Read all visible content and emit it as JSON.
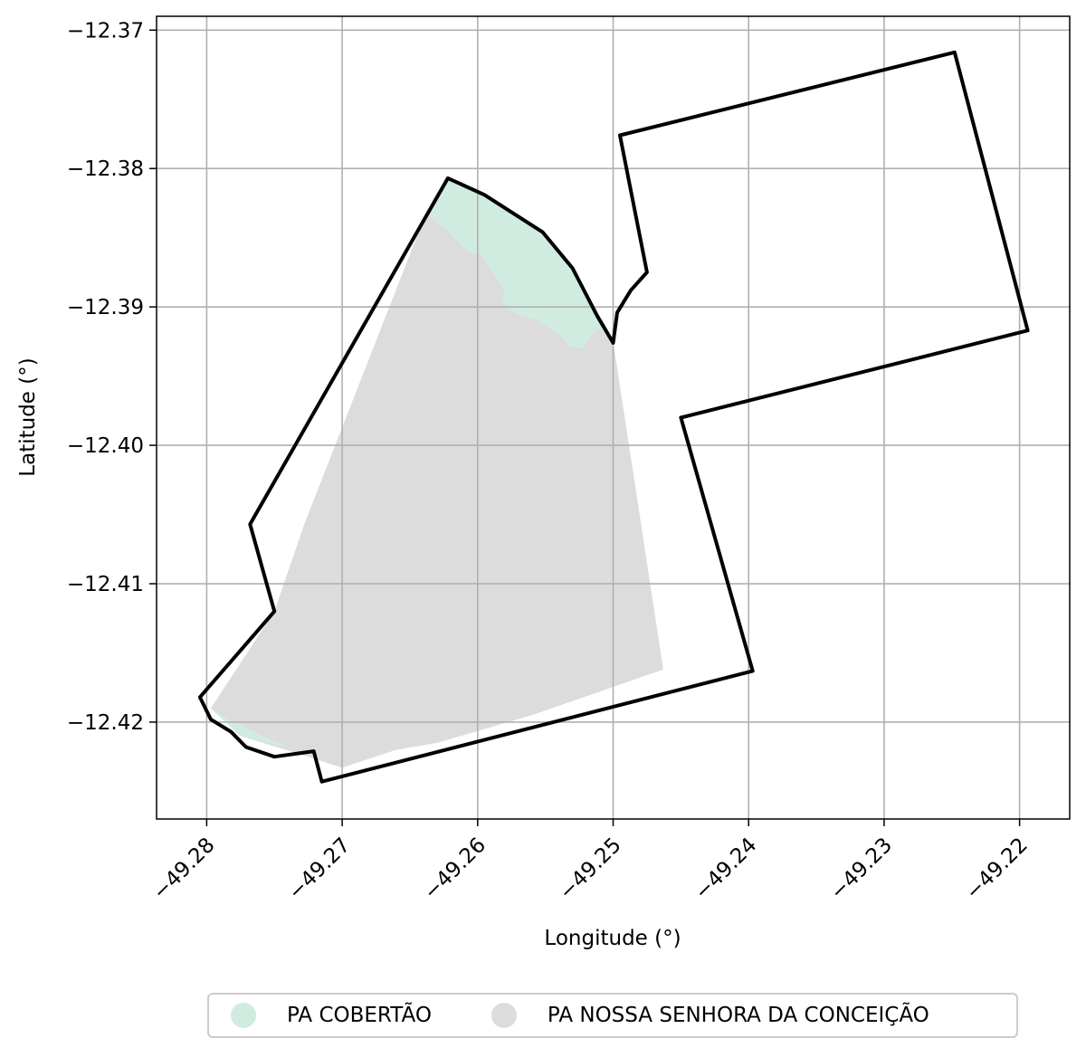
{
  "chart_data": {
    "type": "map",
    "xlabel": "Longitude (°)",
    "ylabel": "Latitude (°)",
    "xlim": [
      -49.2837,
      -49.2163
    ],
    "ylim": [
      -12.427,
      -12.369
    ],
    "xticks": [
      -49.28,
      -49.27,
      -49.26,
      -49.25,
      -49.24,
      -49.23,
      -49.22
    ],
    "yticks": [
      -12.37,
      -12.38,
      -12.39,
      -12.4,
      -12.41,
      -12.42
    ],
    "xtick_labels": [
      "−49.28",
      "−49.27",
      "−49.26",
      "−49.25",
      "−49.24",
      "−49.23",
      "−49.22"
    ],
    "ytick_labels": [
      "−12.37",
      "−12.38",
      "−12.39",
      "−12.40",
      "−12.41",
      "−12.42"
    ],
    "grid": true,
    "legend": {
      "placement": "bottom-center",
      "entries": [
        {
          "name": "PA COBERTÃO",
          "color": "#d0ebdf"
        },
        {
          "name": "PA NOSSA SENHORA DA CONCEIÇÃO",
          "color": "#dcdcdc"
        }
      ]
    },
    "series": [
      {
        "name": "PA NOSSA SENHORA DA CONCEIÇÃO",
        "kind": "polygon",
        "fill": "#dcdcdc",
        "points": [
          [
            -49.2638,
            -12.3832
          ],
          [
            -49.2623,
            -12.3844
          ],
          [
            -49.2607,
            -12.386
          ],
          [
            -49.2598,
            -12.3862
          ],
          [
            -49.259,
            -12.3873
          ],
          [
            -49.258,
            -12.3887
          ],
          [
            -49.2582,
            -12.3897
          ],
          [
            -49.2572,
            -12.3905
          ],
          [
            -49.2555,
            -12.391
          ],
          [
            -49.254,
            -12.392
          ],
          [
            -49.2532,
            -12.3928
          ],
          [
            -49.2522,
            -12.393
          ],
          [
            -49.2517,
            -12.3921
          ],
          [
            -49.251,
            -12.3915
          ],
          [
            -49.25,
            -12.3925
          ],
          [
            -49.2463,
            -12.4162
          ],
          [
            -49.256,
            -12.4195
          ],
          [
            -49.263,
            -12.4215
          ],
          [
            -49.266,
            -12.422
          ],
          [
            -49.27,
            -12.4233
          ],
          [
            -49.2725,
            -12.4225
          ],
          [
            -49.2775,
            -12.421
          ],
          [
            -49.2797,
            -12.419
          ],
          [
            -49.275,
            -12.412
          ],
          [
            -49.2728,
            -12.4057
          ]
        ]
      },
      {
        "name": "PA COBERTÃO",
        "kind": "polygon",
        "fill": "#d0ebdf",
        "points": [
          [
            -49.2638,
            -12.3832
          ],
          [
            -49.2623,
            -12.3844
          ],
          [
            -49.2607,
            -12.386
          ],
          [
            -49.2598,
            -12.3862
          ],
          [
            -49.259,
            -12.3873
          ],
          [
            -49.258,
            -12.3887
          ],
          [
            -49.2582,
            -12.3897
          ],
          [
            -49.2572,
            -12.3905
          ],
          [
            -49.2555,
            -12.391
          ],
          [
            -49.254,
            -12.392
          ],
          [
            -49.2532,
            -12.3928
          ],
          [
            -49.2522,
            -12.393
          ],
          [
            -49.2517,
            -12.3921
          ],
          [
            -49.251,
            -12.3915
          ],
          [
            -49.25,
            -12.3925
          ],
          [
            -49.2532,
            -12.3872
          ],
          [
            -49.2552,
            -12.3846
          ],
          [
            -49.2595,
            -12.3819
          ],
          [
            -49.2622,
            -12.3807
          ]
        ]
      },
      {
        "name": "PA COBERTÃO",
        "kind": "polygon",
        "fill": "#d0ebdf",
        "points": [
          [
            -49.2797,
            -12.419
          ],
          [
            -49.2775,
            -12.421
          ],
          [
            -49.276,
            -12.4214
          ],
          [
            -49.2742,
            -12.4218
          ],
          [
            -49.2725,
            -12.4225
          ],
          [
            -49.2782,
            -12.4199
          ]
        ]
      },
      {
        "name": "",
        "kind": "outline",
        "stroke": "#000000",
        "points": [
          [
            -49.2622,
            -12.3807
          ],
          [
            -49.2595,
            -12.3819
          ],
          [
            -49.2552,
            -12.3846
          ],
          [
            -49.253,
            -12.3872
          ],
          [
            -49.2512,
            -12.3906
          ],
          [
            -49.25,
            -12.3926
          ],
          [
            -49.2497,
            -12.3904
          ],
          [
            -49.2487,
            -12.3888
          ],
          [
            -49.2475,
            -12.3875
          ],
          [
            -49.2495,
            -12.3776
          ],
          [
            -49.2248,
            -12.3716
          ],
          [
            -49.2194,
            -12.3917
          ],
          [
            -49.245,
            -12.398
          ],
          [
            -49.2397,
            -12.4163
          ],
          [
            -49.2715,
            -12.4243
          ],
          [
            -49.2721,
            -12.4221
          ],
          [
            -49.275,
            -12.4225
          ],
          [
            -49.2771,
            -12.4218
          ],
          [
            -49.2782,
            -12.4207
          ],
          [
            -49.2797,
            -12.4198
          ],
          [
            -49.2805,
            -12.4182
          ],
          [
            -49.275,
            -12.412
          ],
          [
            -49.2768,
            -12.4057
          ],
          [
            -49.2622,
            -12.3807
          ]
        ]
      }
    ]
  }
}
